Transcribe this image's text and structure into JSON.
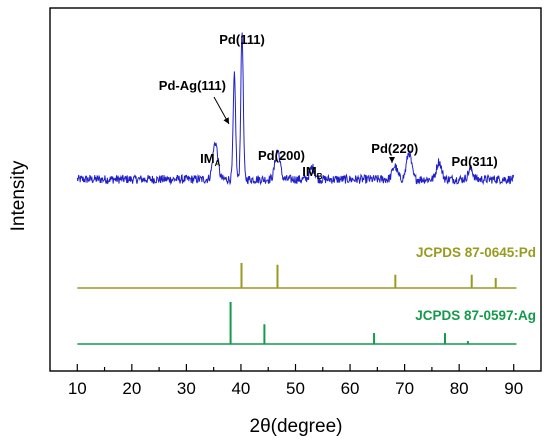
{
  "chart_data": {
    "type": "line",
    "xlabel": "2θ(degree)",
    "ylabel": "Intensity",
    "xlim": [
      5,
      95
    ],
    "x_ticks": [
      10,
      20,
      30,
      40,
      50,
      60,
      70,
      80,
      90
    ],
    "y_ticks_shown": false,
    "grid": false,
    "series": [
      {
        "color": "#2020c8",
        "range": [
          10,
          90
        ],
        "baseline": 0.16,
        "noise": 0.03,
        "peaks": [
          {
            "x": 35.3,
            "h": 0.25
          },
          {
            "x": 38.8,
            "h": 0.7
          },
          {
            "x": 40.2,
            "h": 1.0
          },
          {
            "x": 46.7,
            "h": 0.2
          },
          {
            "x": 53.1,
            "h": 0.08
          },
          {
            "x": 68.2,
            "h": 0.09
          },
          {
            "x": 70.8,
            "h": 0.18
          },
          {
            "x": 76.3,
            "h": 0.12
          },
          {
            "x": 82.1,
            "h": 0.07
          }
        ]
      }
    ],
    "reference_patterns": [
      {
        "name": "JCPDS 87-0645:Pd",
        "color": "#999a20",
        "xrange": [
          10,
          90.5
        ],
        "lines": [
          {
            "x": 40.1,
            "h": 1.0
          },
          {
            "x": 46.7,
            "h": 0.93
          },
          {
            "x": 68.3,
            "h": 0.53
          },
          {
            "x": 82.3,
            "h": 0.53
          },
          {
            "x": 86.7,
            "h": 0.4
          }
        ]
      },
      {
        "name": "JCPDS 87-0597:Ag",
        "color": "#149a4a",
        "xrange": [
          10,
          90.5
        ],
        "lines": [
          {
            "x": 38.1,
            "h": 1.0
          },
          {
            "x": 44.3,
            "h": 0.47
          },
          {
            "x": 64.4,
            "h": 0.26
          },
          {
            "x": 77.4,
            "h": 0.26
          },
          {
            "x": 81.6,
            "h": 0.07
          }
        ]
      }
    ],
    "annotations": [
      {
        "text": "Pd(111)",
        "x": 40.2
      },
      {
        "text": "Pd-Ag(111)",
        "x": 38.8
      },
      {
        "text": "IM",
        "sub": "A",
        "x": 35.3
      },
      {
        "text": "Pd(200)",
        "x": 46.7
      },
      {
        "text": "IM",
        "sub": "B",
        "x": 53.1
      },
      {
        "text": "Pd(220)",
        "x": 68.2
      },
      {
        "text": "Pd(311)",
        "x": 82.1
      }
    ]
  }
}
